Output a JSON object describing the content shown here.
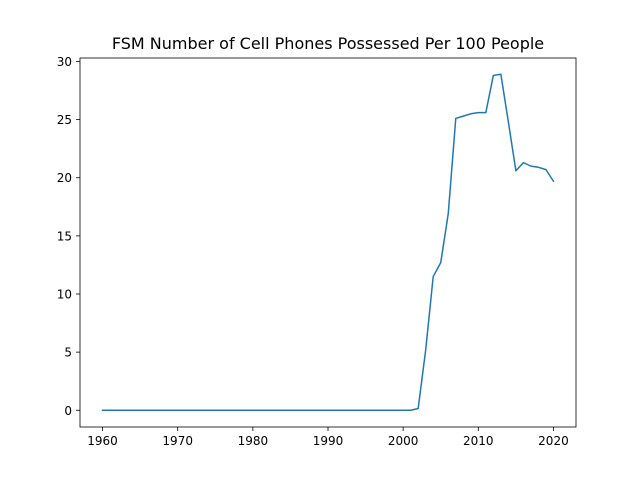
{
  "chart_data": {
    "type": "line",
    "title": "FSM Number of Cell Phones Possessed Per 100 People",
    "xlabel": "",
    "ylabel": "",
    "xlim": [
      1957,
      2023
    ],
    "ylim": [
      -1.44,
      30.3
    ],
    "xticks": [
      1960,
      1970,
      1980,
      1990,
      2000,
      2010,
      2020
    ],
    "yticks": [
      0,
      5,
      10,
      15,
      20,
      25,
      30
    ],
    "grid": false,
    "legend": "none",
    "series": [
      {
        "color": "#1f77b4",
        "x": [
          1960,
          1961,
          1962,
          1963,
          1964,
          1965,
          1966,
          1967,
          1968,
          1969,
          1970,
          1971,
          1972,
          1973,
          1974,
          1975,
          1976,
          1977,
          1978,
          1979,
          1980,
          1981,
          1982,
          1983,
          1984,
          1985,
          1986,
          1987,
          1988,
          1989,
          1990,
          1991,
          1992,
          1993,
          1994,
          1995,
          1996,
          1997,
          1998,
          1999,
          2000,
          2001,
          2002,
          2003,
          2004,
          2005,
          2006,
          2007,
          2008,
          2009,
          2010,
          2011,
          2012,
          2013,
          2014,
          2015,
          2016,
          2017,
          2018,
          2019,
          2020
        ],
        "values": [
          0,
          0,
          0,
          0,
          0,
          0,
          0,
          0,
          0,
          0,
          0,
          0,
          0,
          0,
          0,
          0,
          0,
          0,
          0,
          0,
          0,
          0,
          0,
          0,
          0,
          0,
          0,
          0,
          0,
          0,
          0,
          0,
          0,
          0,
          0,
          0,
          0,
          0,
          0,
          0,
          0,
          0,
          0.15,
          5.2,
          11.5,
          12.7,
          16.9,
          25.1,
          25.3,
          25.5,
          25.6,
          25.6,
          28.8,
          28.9,
          24.8,
          20.6,
          21.3,
          21.0,
          20.9,
          20.7,
          19.7
        ]
      }
    ]
  }
}
